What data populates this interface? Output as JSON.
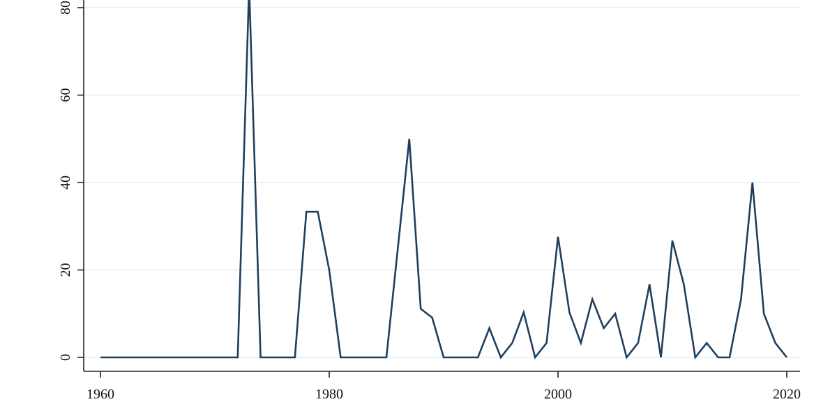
{
  "chart_data": {
    "type": "line",
    "title": "",
    "xlabel": "",
    "ylabel": "",
    "xlim": [
      1960,
      2020
    ],
    "ylim": [
      0,
      80
    ],
    "xticks": [
      1960,
      1980,
      2000,
      2020
    ],
    "yticks": [
      0,
      20,
      40,
      60,
      80
    ],
    "grid": "horizontal",
    "colors": {
      "line": "#1f3f5f",
      "grid": "#dde9ee",
      "axis": "#222222"
    },
    "series": [
      {
        "x": [
          1960,
          1961,
          1962,
          1963,
          1964,
          1965,
          1966,
          1967,
          1968,
          1969,
          1970,
          1971,
          1972,
          1973,
          1974,
          1975,
          1976,
          1977,
          1978,
          1979,
          1980,
          1981,
          1982,
          1983,
          1984,
          1985,
          1986,
          1987,
          1988,
          1989,
          1990,
          1991,
          1992,
          1993,
          1994,
          1995,
          1996,
          1997,
          1998,
          1999,
          2000,
          2001,
          2002,
          2003,
          2004,
          2005,
          2006,
          2007,
          2008,
          2009,
          2010,
          2011,
          2012,
          2013,
          2014,
          2015,
          2016,
          2017,
          2018,
          2019,
          2020
        ],
        "values": [
          0,
          0,
          0,
          0,
          0,
          0,
          0,
          0,
          0,
          0,
          0,
          0,
          0,
          85,
          0,
          0,
          0,
          0,
          33.3,
          33.3,
          20,
          0,
          0,
          0,
          0,
          0,
          25,
          50,
          11.1,
          9.1,
          0,
          0,
          0,
          0,
          6.7,
          0,
          3.3,
          10.3,
          0,
          3.3,
          27.6,
          10.3,
          3.3,
          13.3,
          6.7,
          10,
          0,
          3.3,
          16.7,
          0,
          26.7,
          16.7,
          0,
          3.3,
          0,
          0,
          13.3,
          40,
          10,
          3.3,
          0
        ]
      }
    ]
  }
}
